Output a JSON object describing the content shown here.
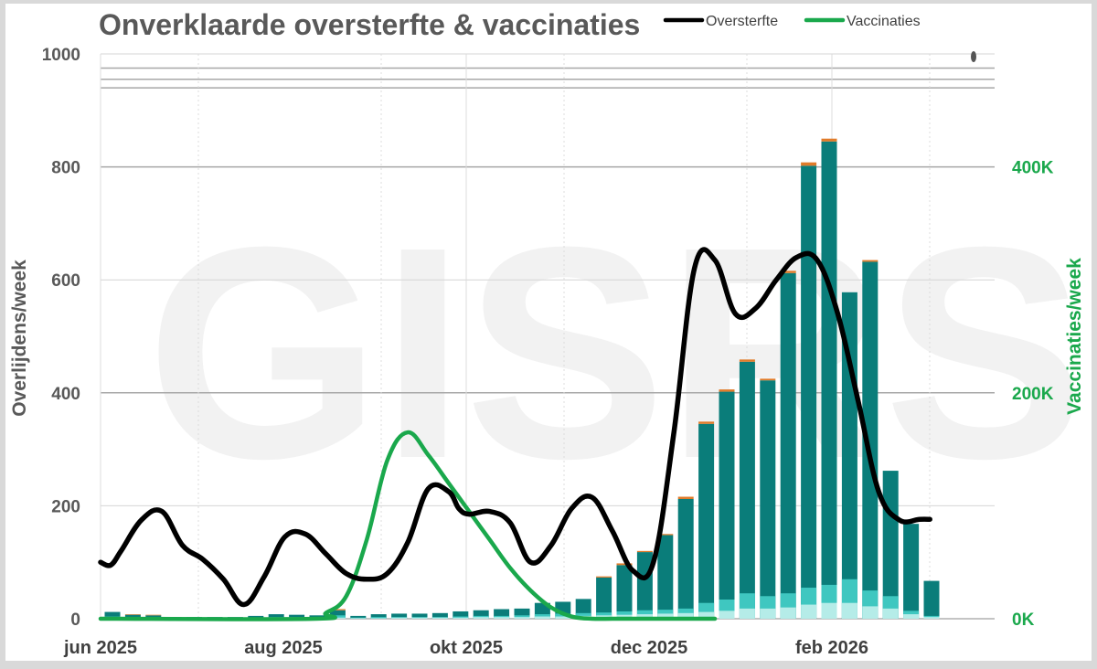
{
  "chart_data": {
    "type": "bar",
    "title": "Onverklaarde oversterfte & vaccinaties",
    "watermark": "GISRS",
    "ylabel_left": "Overlijdens/week",
    "ylabel_right": "Vaccinaties/week",
    "ylim_left": [
      0,
      1000
    ],
    "ylim_right": [
      0,
      500000
    ],
    "yticks_left": [
      "0",
      "200",
      "400",
      "600",
      "800",
      "1000"
    ],
    "yticks_right": [
      "0K",
      "200K",
      "400K"
    ],
    "x_labels": [
      "jun 2025",
      "aug 2025",
      "okt 2025",
      "dec 2025",
      "feb 2026"
    ],
    "legend": [
      {
        "name": "Oversterfte",
        "color": "#000000"
      },
      {
        "name": "Vaccinaties",
        "color": "#1aa84c"
      }
    ],
    "legend_position": "top-right",
    "colors": {
      "bar_main": "#0a7d7a",
      "bar_mid": "#3fc7c0",
      "bar_light": "#b5ece8",
      "bar_top": "#e07b2a",
      "oversterfte": "#000000",
      "vaccinaties": "#1aa84c"
    },
    "weeks": [
      0,
      1,
      2,
      3,
      4,
      5,
      6,
      7,
      8,
      9,
      10,
      11,
      12,
      13,
      14,
      15,
      16,
      17,
      18,
      19,
      20,
      21,
      22,
      23,
      24,
      25,
      26,
      27,
      28,
      29,
      30,
      31,
      32,
      33,
      34,
      35,
      36,
      37,
      38,
      39,
      40,
      41,
      42
    ],
    "bars": {
      "total": [
        12,
        7,
        6,
        3,
        3,
        3,
        3,
        5,
        8,
        7,
        6,
        15,
        5,
        8,
        9,
        9,
        10,
        13,
        15,
        17,
        18,
        28,
        30,
        35,
        73,
        95,
        118,
        148,
        212,
        345,
        402,
        455,
        422,
        612,
        802,
        845,
        578,
        632,
        262,
        168,
        67,
        0,
        0
      ],
      "middle": [
        4,
        2,
        2,
        1,
        1,
        1,
        1,
        2,
        3,
        3,
        2,
        6,
        2,
        3,
        3,
        3,
        3,
        4,
        5,
        5,
        6,
        8,
        9,
        10,
        11,
        13,
        15,
        16,
        18,
        28,
        34,
        45,
        40,
        45,
        55,
        60,
        70,
        50,
        40,
        14,
        5,
        0,
        0
      ],
      "light": [
        2,
        1,
        1,
        0,
        0,
        0,
        0,
        1,
        1,
        1,
        1,
        2,
        1,
        1,
        2,
        2,
        2,
        2,
        3,
        3,
        3,
        4,
        4,
        5,
        6,
        7,
        8,
        9,
        10,
        12,
        14,
        18,
        18,
        20,
        25,
        28,
        28,
        22,
        18,
        8,
        3,
        0,
        0
      ],
      "top": [
        0,
        1,
        1,
        0,
        0,
        0,
        0,
        0,
        0,
        0,
        0,
        2,
        0,
        0,
        0,
        0,
        0,
        0,
        0,
        0,
        0,
        0,
        0,
        0,
        2,
        3,
        2,
        2,
        4,
        4,
        4,
        4,
        3,
        4,
        6,
        5,
        0,
        3,
        0,
        0,
        0,
        0,
        0
      ]
    },
    "series": [
      {
        "name": "Oversterfte",
        "weeks": [
          0,
          0.5,
          1,
          2,
          3,
          4,
          5,
          6,
          7,
          8,
          9,
          10,
          11,
          12,
          13,
          14,
          15,
          16,
          17,
          17.5,
          18,
          19,
          20,
          21,
          22,
          23,
          24,
          25,
          26,
          27,
          28,
          29,
          30,
          31,
          32,
          33,
          34,
          35,
          36,
          37,
          38,
          39,
          40,
          40.5
        ],
        "values": [
          100,
          95,
          120,
          175,
          190,
          130,
          105,
          70,
          25,
          75,
          145,
          150,
          115,
          80,
          70,
          80,
          135,
          230,
          225,
          195,
          185,
          190,
          170,
          100,
          130,
          195,
          215,
          155,
          85,
          100,
          330,
          620,
          635,
          540,
          550,
          600,
          640,
          635,
          540,
          385,
          225,
          175,
          176,
          176
        ]
      },
      {
        "name": "Vaccinaties",
        "weeks": [
          0,
          10.5,
          11,
          12,
          13,
          14,
          15,
          16,
          17,
          18,
          19,
          20,
          21,
          22,
          23,
          24,
          25,
          26,
          27,
          28,
          29,
          30
        ],
        "values": [
          0,
          0,
          5000,
          20000,
          70000,
          140000,
          165000,
          145000,
          120000,
          95000,
          70000,
          45000,
          25000,
          10000,
          2000,
          0,
          0,
          0,
          0,
          0,
          0,
          0
        ]
      }
    ]
  }
}
